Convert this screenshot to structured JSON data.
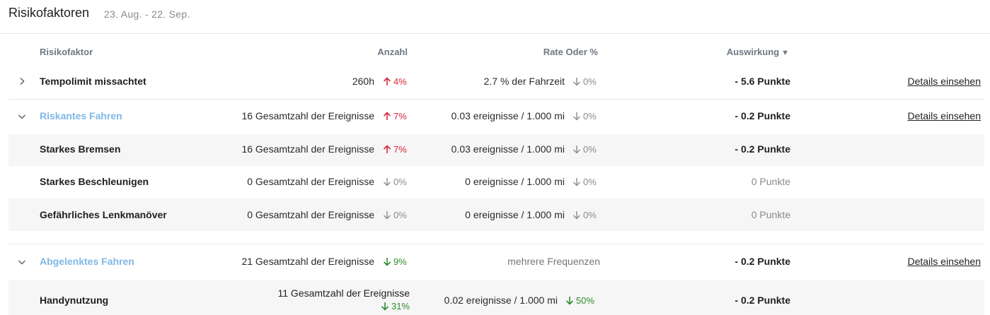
{
  "header": {
    "title": "Risikofaktoren",
    "date_range": "23. Aug. - 22. Sep."
  },
  "columns": {
    "factor": "Risikofaktor",
    "count": "Anzahl",
    "rate": "Rate Oder %",
    "impact": "Auswirkung"
  },
  "details_label": "Details einsehen",
  "rows": {
    "speed": {
      "name": "Tempolimit missachtet",
      "count": "260h",
      "count_trend": "4%",
      "rate": "2.7 % der Fahrzeit",
      "rate_trend": "0%",
      "impact": "- 5.6 Punkte"
    },
    "risky": {
      "name": "Riskantes Fahren",
      "count": "16 Gesamtzahl der Ereignisse",
      "count_trend": "7%",
      "rate": "0.03 ereignisse / 1.000 mi",
      "rate_trend": "0%",
      "impact": "- 0.2 Punkte"
    },
    "braking": {
      "name": "Starkes Bremsen",
      "count": "16 Gesamtzahl der Ereignisse",
      "count_trend": "7%",
      "rate": "0.03 ereignisse / 1.000 mi",
      "rate_trend": "0%",
      "impact": "- 0.2 Punkte"
    },
    "accel": {
      "name": "Starkes Beschleunigen",
      "count": "0 Gesamtzahl der Ereignisse",
      "count_trend": "0%",
      "rate": "0 ereignisse / 1.000 mi",
      "rate_trend": "0%",
      "impact": "0 Punkte"
    },
    "steer": {
      "name": "Gefährliches Lenkmanöver",
      "count": "0 Gesamtzahl der Ereignisse",
      "count_trend": "0%",
      "rate": "0 ereignisse / 1.000 mi",
      "rate_trend": "0%",
      "impact": "0 Punkte"
    },
    "distracted": {
      "name": "Abgelenktes Fahren",
      "count": "21 Gesamtzahl der Ereignisse",
      "count_trend": "9%",
      "rate": "mehrere Frequenzen",
      "impact": "- 0.2 Punkte"
    },
    "phone": {
      "name": "Handynutzung",
      "count": "11 Gesamtzahl der Ereignisse",
      "count_trend": "31%",
      "rate": "0.02 ereignisse / 1.000 mi",
      "rate_trend": "50%",
      "impact": "- 0.2 Punkte"
    }
  },
  "icons": {
    "expand": "chevron-right-icon",
    "collapse": "chevron-down-icon",
    "up": "arrow-up-icon",
    "down": "arrow-down-icon",
    "sort": "sort-desc-icon"
  },
  "colors": {
    "up": "#d6283b",
    "down_good": "#2e8b2e",
    "neutral": "#8a8a8a",
    "link": "#7fb7e8"
  }
}
